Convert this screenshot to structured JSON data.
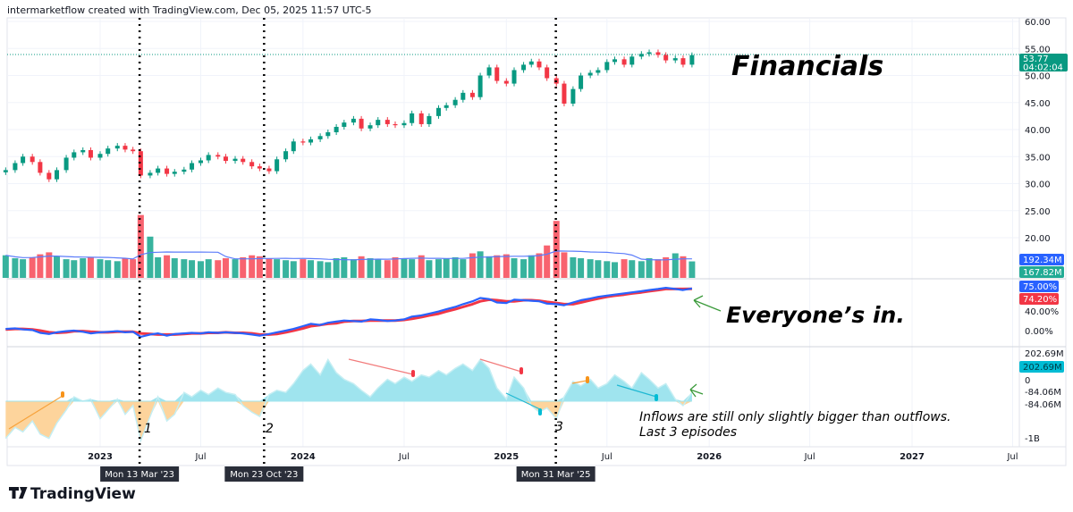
{
  "header": {
    "attribution": "intermarketflow created with TradingView.com, Dec 05, 2025 11:57 UTC-5"
  },
  "logo": {
    "text": "TradingView"
  },
  "annotations": {
    "title": "Financials",
    "breadth_note": "Everyone’s in.",
    "flow_note_1": "Inflows are still only slightly bigger than outflows.",
    "flow_note_2": "Last 3 episodes",
    "episode_1": "1",
    "episode_2": "2",
    "episode_3": "3"
  },
  "crosshair_dates": [
    {
      "date": "2023-03-13",
      "label": "Mon 13 Mar '23"
    },
    {
      "date": "2023-10-23",
      "label": "Mon 23 Oct '23"
    },
    {
      "date": "2025-03-31",
      "label": "Mon 31 Mar '25"
    }
  ],
  "labels": {
    "last_price": "53.77",
    "countdown": "04:02:04",
    "volume_ma": "192.34M",
    "volume": "167.82M",
    "breadth_blue": "75.00%",
    "breadth_red": "74.20%",
    "flow_last": "202.69M"
  },
  "colors": {
    "up": "#089981",
    "down": "#f23645",
    "blue": "#2962ff",
    "red": "#f23645",
    "flow_pos": "#9fe4ee",
    "flow_neg": "#fdd49c",
    "label_cyan": "#00bcd4"
  },
  "chart_data": [
    {
      "type": "candlestick",
      "title": "",
      "price_ticks": [
        60,
        55,
        50,
        45,
        40,
        35,
        30,
        25,
        20
      ],
      "price_tick_labels": [
        "60.00",
        "55.00",
        "50.00",
        "45.00",
        "40.00",
        "35.00",
        "30.00",
        "25.00",
        "20.00"
      ],
      "ylim": [
        18,
        60
      ],
      "time_ticks": [
        {
          "date": "2023-01-01",
          "label": "2023"
        },
        {
          "date": "2023-07-01",
          "label": "Jul"
        },
        {
          "date": "2024-01-01",
          "label": "2024"
        },
        {
          "date": "2024-07-01",
          "label": "Jul"
        },
        {
          "date": "2025-01-01",
          "label": "2025"
        },
        {
          "date": "2025-07-01",
          "label": "Jul"
        },
        {
          "date": "2026-01-01",
          "label": "2026"
        },
        {
          "date": "2026-07-01",
          "label": "Jul"
        },
        {
          "date": "2027-01-01",
          "label": "2027"
        },
        {
          "date": "2027-07-01",
          "label": "Jul"
        }
      ],
      "x": [
        "2022-07-15",
        "2022-08-01",
        "2022-08-15",
        "2022-09-01",
        "2022-09-15",
        "2022-10-01",
        "2022-10-15",
        "2022-11-01",
        "2022-11-15",
        "2022-12-01",
        "2022-12-15",
        "2023-01-01",
        "2023-01-15",
        "2023-02-01",
        "2023-02-15",
        "2023-03-01",
        "2023-03-15",
        "2023-04-01",
        "2023-04-15",
        "2023-05-01",
        "2023-05-15",
        "2023-06-01",
        "2023-06-15",
        "2023-07-01",
        "2023-07-15",
        "2023-08-01",
        "2023-08-15",
        "2023-09-01",
        "2023-09-15",
        "2023-10-01",
        "2023-10-15",
        "2023-11-01",
        "2023-11-15",
        "2023-12-01",
        "2023-12-15",
        "2024-01-01",
        "2024-01-15",
        "2024-02-01",
        "2024-02-15",
        "2024-03-01",
        "2024-03-15",
        "2024-04-01",
        "2024-04-15",
        "2024-05-01",
        "2024-05-15",
        "2024-06-01",
        "2024-06-15",
        "2024-07-01",
        "2024-07-15",
        "2024-08-01",
        "2024-08-15",
        "2024-09-01",
        "2024-09-15",
        "2024-10-01",
        "2024-10-15",
        "2024-11-01",
        "2024-11-15",
        "2024-12-01",
        "2024-12-15",
        "2025-01-01",
        "2025-01-15",
        "2025-02-01",
        "2025-02-15",
        "2025-03-01",
        "2025-03-15",
        "2025-04-01",
        "2025-04-15",
        "2025-05-01",
        "2025-05-15",
        "2025-06-01",
        "2025-06-15",
        "2025-07-01",
        "2025-07-15",
        "2025-08-01",
        "2025-08-15",
        "2025-09-01",
        "2025-09-15",
        "2025-10-01",
        "2025-10-15",
        "2025-11-01",
        "2025-11-15",
        "2025-12-01"
      ],
      "close": [
        32.5,
        33.8,
        35.0,
        34.0,
        32.0,
        30.8,
        32.5,
        34.8,
        35.8,
        36.2,
        34.8,
        35.5,
        36.5,
        37.0,
        36.3,
        36.0,
        31.5,
        32.0,
        32.8,
        31.8,
        32.2,
        32.6,
        33.8,
        34.3,
        35.3,
        35.0,
        34.2,
        34.6,
        34.0,
        33.2,
        32.8,
        32.3,
        34.5,
        36.0,
        37.8,
        37.6,
        38.2,
        38.8,
        39.5,
        40.5,
        41.3,
        42.0,
        40.2,
        40.8,
        41.8,
        41.0,
        40.8,
        41.2,
        43.0,
        41.0,
        42.5,
        44.0,
        44.5,
        45.5,
        46.8,
        46.0,
        50.0,
        51.5,
        49.0,
        48.5,
        51.0,
        52.0,
        52.6,
        51.5,
        49.5,
        48.5,
        44.8,
        47.5,
        50.0,
        50.5,
        51.0,
        52.5,
        53.0,
        52.0,
        53.5,
        54.0,
        54.3,
        53.8,
        52.8,
        53.2,
        52.0,
        53.77
      ],
      "volume_M": [
        230,
        200,
        190,
        210,
        240,
        260,
        220,
        190,
        180,
        200,
        210,
        190,
        180,
        170,
        200,
        190,
        640,
        420,
        210,
        230,
        200,
        190,
        180,
        170,
        190,
        180,
        200,
        190,
        210,
        230,
        220,
        200,
        190,
        180,
        170,
        190,
        180,
        170,
        160,
        200,
        210,
        190,
        220,
        200,
        190,
        180,
        210,
        200,
        190,
        230,
        180,
        190,
        200,
        210,
        190,
        250,
        270,
        220,
        230,
        240,
        200,
        190,
        230,
        250,
        330,
        580,
        260,
        210,
        200,
        190,
        180,
        170,
        160,
        190,
        180,
        170,
        200,
        190,
        210,
        250,
        220,
        167.82
      ]
    },
    {
      "type": "line",
      "title": "",
      "y_ticks": [
        {
          "value": 40,
          "label": "40.00%"
        },
        {
          "value": 0,
          "label": "0.00%"
        }
      ],
      "series": [
        {
          "color": "#2962ff",
          "values": [
            3,
            4,
            2,
            1,
            -4,
            -6,
            -3,
            -1,
            0,
            -2,
            -5,
            -3,
            -2,
            -1,
            -3,
            -2,
            -11,
            -7,
            -5,
            -9,
            -6,
            -5,
            -4,
            -5,
            -3,
            -4,
            -3,
            -4,
            -5,
            -7,
            -9,
            -6,
            -3,
            0,
            3,
            8,
            12,
            10,
            14,
            16,
            18,
            17,
            16,
            20,
            19,
            17,
            18,
            20,
            25,
            27,
            30,
            34,
            38,
            42,
            47,
            52,
            58,
            56,
            50,
            49,
            55,
            54,
            53,
            52,
            48,
            47,
            45,
            50,
            54,
            57,
            60,
            62,
            64,
            66,
            68,
            70,
            72,
            74,
            76,
            74,
            72,
            75
          ]
        },
        {
          "color": "#f23645",
          "values": [
            2,
            3,
            3,
            2,
            0,
            -3,
            -4,
            -3,
            -1,
            -1,
            -2,
            -3,
            -3,
            -2,
            -2,
            -2,
            -5,
            -6,
            -7,
            -7,
            -7,
            -6,
            -5,
            -5,
            -4,
            -4,
            -3,
            -4,
            -4,
            -5,
            -7,
            -7,
            -6,
            -3,
            0,
            4,
            8,
            10,
            12,
            13,
            16,
            17,
            17,
            18,
            18,
            18,
            18,
            19,
            21,
            24,
            27,
            30,
            34,
            38,
            42,
            47,
            52,
            55,
            54,
            52,
            52,
            54,
            54,
            53,
            51,
            49,
            47,
            47,
            50,
            54,
            57,
            60,
            62,
            64,
            66,
            68,
            70,
            72,
            74,
            74,
            74,
            74.2
          ]
        }
      ]
    },
    {
      "type": "area",
      "title": "",
      "y_ticks": [
        {
          "value_label": "202.69M"
        },
        {
          "value_label": "0"
        },
        {
          "value_label": "-84.06M"
        },
        {
          "value_label": "-84.06M"
        },
        {
          "value_label": "-1B"
        }
      ],
      "values_M": [
        -170,
        -120,
        -140,
        -90,
        -150,
        -170,
        -100,
        -40,
        20,
        0,
        10,
        -80,
        -40,
        10,
        -60,
        -20,
        -180,
        -70,
        20,
        -90,
        -60,
        40,
        20,
        50,
        30,
        60,
        40,
        30,
        -20,
        -50,
        -70,
        30,
        50,
        40,
        80,
        140,
        170,
        120,
        190,
        130,
        100,
        80,
        50,
        20,
        60,
        100,
        80,
        110,
        90,
        120,
        110,
        140,
        120,
        150,
        170,
        140,
        190,
        150,
        60,
        10,
        110,
        60,
        -20,
        -50,
        -30,
        -80,
        20,
        90,
        70,
        100,
        60,
        80,
        120,
        90,
        60,
        130,
        100,
        60,
        80,
        10,
        -20,
        40
      ]
    }
  ]
}
